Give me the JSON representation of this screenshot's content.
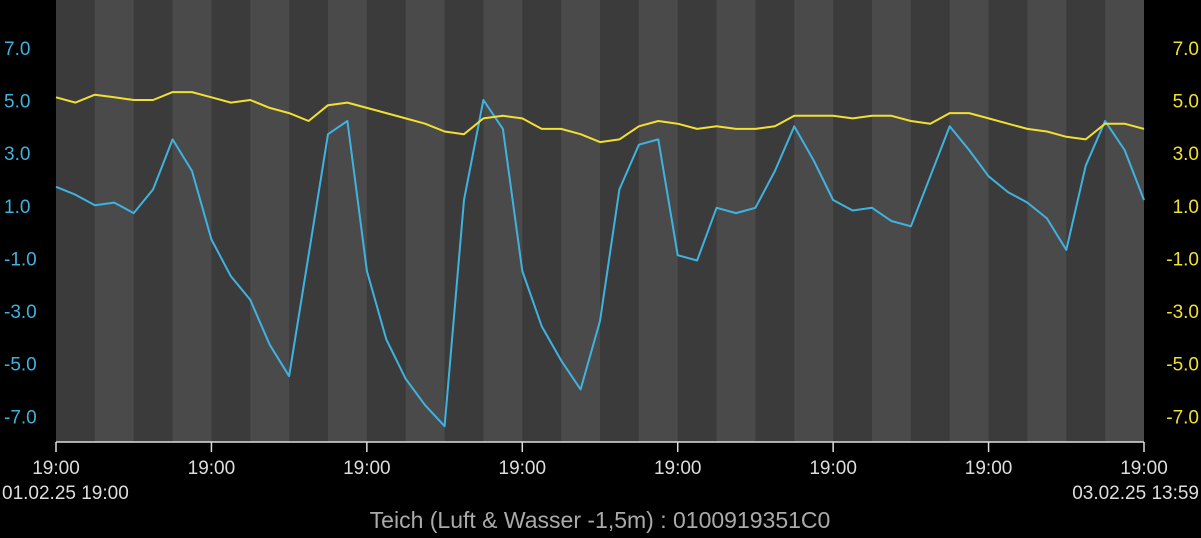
{
  "chart_data": {
    "type": "line",
    "title": "Teich (Luft & Wasser -1,5m) : 0100919351C0",
    "start_label": "01.02.25   19:00",
    "end_label": "03.02.25 13:59",
    "x": [
      0,
      1,
      2,
      3,
      4,
      5,
      6,
      7,
      8,
      9,
      10,
      11,
      12,
      13,
      14,
      15,
      16,
      17,
      18,
      19,
      20,
      21,
      22,
      23,
      24,
      25,
      26,
      27,
      28,
      29,
      30,
      31,
      32,
      33,
      34,
      35,
      36,
      37,
      38,
      39,
      40,
      41,
      42,
      43,
      44,
      45,
      46,
      47,
      48,
      49,
      50,
      51,
      52,
      53,
      54,
      55,
      56
    ],
    "xlim": [
      0,
      56
    ],
    "xticks": [
      {
        "value": 0,
        "label": "19:00"
      },
      {
        "value": 8,
        "label": "19:00"
      },
      {
        "value": 16,
        "label": "19:00"
      },
      {
        "value": 24,
        "label": "19:00"
      },
      {
        "value": 32,
        "label": "19:00"
      },
      {
        "value": 40,
        "label": "19:00"
      },
      {
        "value": 48,
        "label": "19:00"
      },
      {
        "value": 56,
        "label": "19:00"
      }
    ],
    "ylim": [
      -7.9,
      8.9
    ],
    "yticks": [
      {
        "value": 7,
        "label": "7.0"
      },
      {
        "value": 5,
        "label": "5.0"
      },
      {
        "value": 3,
        "label": "3.0"
      },
      {
        "value": 1,
        "label": "1.0"
      },
      {
        "value": -1,
        "label": "-1.0"
      },
      {
        "value": -3,
        "label": "-3.0"
      },
      {
        "value": -5,
        "label": "-5.0"
      },
      {
        "value": -7,
        "label": "-7.0"
      }
    ],
    "y2lim": [
      -7.9,
      8.9
    ],
    "y2ticks": [
      {
        "value": 7,
        "label": "7.0"
      },
      {
        "value": 5,
        "label": "5.0"
      },
      {
        "value": 3,
        "label": "3.0"
      },
      {
        "value": 1,
        "label": "1.0"
      },
      {
        "value": -1,
        "label": "-1.0"
      },
      {
        "value": -3,
        "label": "-3.0"
      },
      {
        "value": -5,
        "label": "-5.0"
      },
      {
        "value": -7,
        "label": "-7.0"
      }
    ],
    "y_color": "#3fb3e0",
    "y2_color": "#f0e030",
    "series": [
      {
        "color": "#3fb3e0",
        "values": [
          1.8,
          1.5,
          1.1,
          1.2,
          0.8,
          1.7,
          3.6,
          2.4,
          -0.2,
          -1.6,
          -2.5,
          -4.2,
          -5.4,
          -0.8,
          3.8,
          4.3,
          -1.4,
          -4.0,
          -5.5,
          -6.5,
          -7.3,
          1.3,
          5.1,
          4.0,
          -1.4,
          -3.5,
          -4.8,
          -5.9,
          -3.3,
          1.7,
          3.4,
          3.6,
          -0.8,
          -1.0,
          1.0,
          0.8,
          1.0,
          2.4,
          4.1,
          2.8,
          1.3,
          0.9,
          1.0,
          0.5,
          0.3,
          2.2,
          4.1,
          3.2,
          2.2,
          1.6,
          1.2,
          0.6,
          -0.6,
          2.6,
          4.3,
          3.2,
          1.3
        ]
      },
      {
        "color": "#f0e030",
        "axis": "y2",
        "values": [
          5.2,
          5.0,
          5.3,
          5.2,
          5.1,
          5.1,
          5.4,
          5.4,
          5.2,
          5.0,
          5.1,
          4.8,
          4.6,
          4.3,
          4.9,
          5.0,
          4.8,
          4.6,
          4.4,
          4.2,
          3.9,
          3.8,
          4.4,
          4.5,
          4.4,
          4.0,
          4.0,
          3.8,
          3.5,
          3.6,
          4.1,
          4.3,
          4.2,
          4.0,
          4.1,
          4.0,
          4.0,
          4.1,
          4.5,
          4.5,
          4.5,
          4.4,
          4.5,
          4.5,
          4.3,
          4.2,
          4.6,
          4.6,
          4.4,
          4.2,
          4.0,
          3.9,
          3.7,
          3.6,
          4.2,
          4.2,
          4.0
        ]
      }
    ]
  }
}
